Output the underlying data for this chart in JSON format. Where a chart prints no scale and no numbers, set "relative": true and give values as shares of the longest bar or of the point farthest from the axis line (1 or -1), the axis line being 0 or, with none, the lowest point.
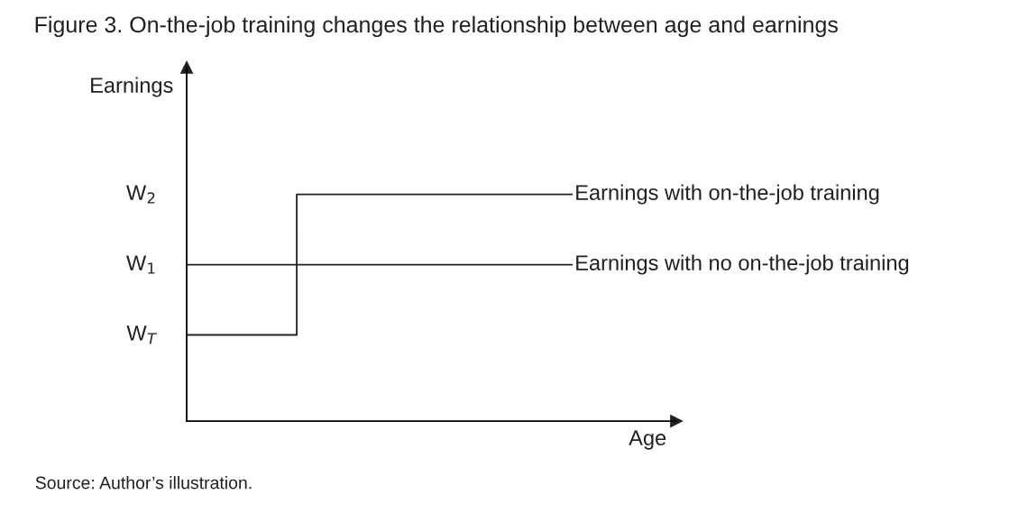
{
  "chart_data": {
    "type": "step",
    "title": "Figure 3. On-the-job training changes the relationship between age and earnings",
    "xlabel": "Age",
    "ylabel": "Earnings",
    "relative": true,
    "categories": [
      null,
      null,
      null,
      null,
      null,
      null,
      null,
      null
    ],
    "series": [
      {
        "name": "Earnings with on-the-job training",
        "color": "#231f20",
        "values": [
          0.38,
          0.38,
          1,
          1,
          1,
          1,
          1,
          1
        ]
      },
      {
        "name": "Earnings with no on-the-job training",
        "color": "#231f20",
        "values": [
          0.69,
          0.69,
          0.69,
          0.69,
          0.69,
          0.69,
          0.69,
          0.69
        ]
      }
    ],
    "annotations": [
      "W$_{T}$",
      "W$_{1}$",
      "W$_{2}$",
      "Source: Author’s illustration."
    ],
    "grid": false,
    "legend": false
  }
}
